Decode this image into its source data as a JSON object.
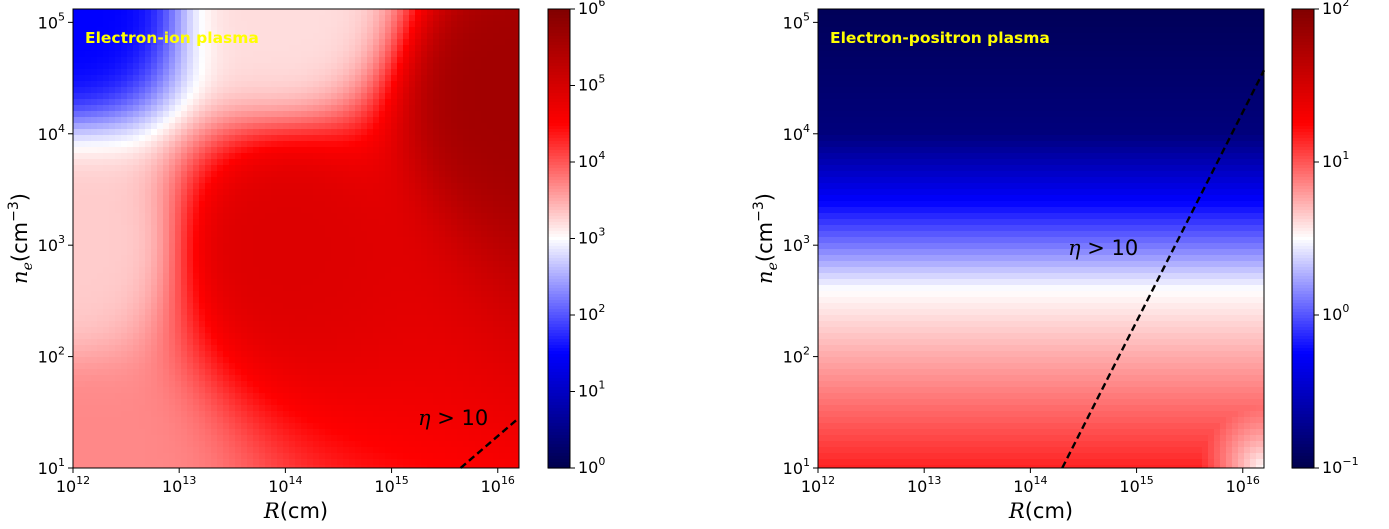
{
  "chart_data": [
    {
      "type": "heatmap",
      "panel": "left",
      "annotation": "Electron-ion plasma",
      "annotation_color": "#ffff00",
      "xlabel": {
        "var": "R",
        "unit": "(cm)"
      },
      "ylabel": {
        "var": "n",
        "sub": "e",
        "unit": "(cm",
        "sup": "−3",
        "close": ")"
      },
      "xscale": "log",
      "yscale": "log",
      "xlim_exp": [
        12,
        16.2
      ],
      "ylim_exp": [
        1,
        5.12
      ],
      "x_ticks": [
        {
          "base": "10",
          "exp": "12"
        },
        {
          "base": "10",
          "exp": "13"
        },
        {
          "base": "10",
          "exp": "14"
        },
        {
          "base": "10",
          "exp": "15"
        },
        {
          "base": "10",
          "exp": "16"
        }
      ],
      "y_ticks": [
        {
          "base": "10",
          "exp": "1"
        },
        {
          "base": "10",
          "exp": "2"
        },
        {
          "base": "10",
          "exp": "3"
        },
        {
          "base": "10",
          "exp": "4"
        },
        {
          "base": "10",
          "exp": "5"
        }
      ],
      "colorbar": {
        "cmap": "seismic",
        "scale": "log",
        "range_exp": [
          0,
          6
        ],
        "ticks": [
          {
            "base": "10",
            "exp": "0"
          },
          {
            "base": "10",
            "exp": "1"
          },
          {
            "base": "10",
            "exp": "2"
          },
          {
            "base": "10",
            "exp": "3"
          },
          {
            "base": "10",
            "exp": "4"
          },
          {
            "base": "10",
            "exp": "5"
          },
          {
            "base": "10",
            "exp": "6"
          }
        ]
      },
      "field": {
        "description_type": "log10 value as function of log10 R (x) and log10 n_e (y)",
        "anchors": [
          {
            "x": 12.0,
            "y": 5.12,
            "z": 1.5
          },
          {
            "x": 12.0,
            "y": 3.0,
            "z": 3.3
          },
          {
            "x": 14.0,
            "y": 5.12,
            "z": 3.2
          },
          {
            "x": 16.2,
            "y": 4.4,
            "z": 5.6
          },
          {
            "x": 14.0,
            "y": 3.0,
            "z": 4.9
          },
          {
            "x": 12.0,
            "y": 1.0,
            "z": 3.7
          }
        ]
      },
      "boundary": {
        "style": "dashed",
        "color": "#000000",
        "label": {
          "symbol": "η",
          "relation": " > 10"
        },
        "points": [
          [
            15.65,
            1.0
          ],
          [
            16.2,
            1.45
          ]
        ]
      }
    },
    {
      "type": "heatmap",
      "panel": "right",
      "annotation": "Electron-positron plasma",
      "annotation_color": "#ffff00",
      "xlabel": {
        "var": "R",
        "unit": "(cm)"
      },
      "ylabel": {
        "var": "n",
        "sub": "e",
        "unit": "(cm",
        "sup": "−3",
        "close": ")"
      },
      "xscale": "log",
      "yscale": "log",
      "xlim_exp": [
        12,
        16.2
      ],
      "ylim_exp": [
        1,
        5.12
      ],
      "x_ticks": [
        {
          "base": "10",
          "exp": "12"
        },
        {
          "base": "10",
          "exp": "13"
        },
        {
          "base": "10",
          "exp": "14"
        },
        {
          "base": "10",
          "exp": "15"
        },
        {
          "base": "10",
          "exp": "16"
        }
      ],
      "y_ticks": [
        {
          "base": "10",
          "exp": "1"
        },
        {
          "base": "10",
          "exp": "2"
        },
        {
          "base": "10",
          "exp": "3"
        },
        {
          "base": "10",
          "exp": "4"
        },
        {
          "base": "10",
          "exp": "5"
        }
      ],
      "colorbar": {
        "cmap": "seismic",
        "scale": "log",
        "range_exp": [
          -1,
          2
        ],
        "ticks": [
          {
            "base": "10",
            "exp": "−1"
          },
          {
            "base": "10",
            "exp": "0"
          },
          {
            "base": "10",
            "exp": "1"
          },
          {
            "base": "10",
            "exp": "2"
          }
        ]
      },
      "field": {
        "description_type": "log10 value depends mostly on log10 n_e",
        "profile_y": [
          [
            1.0,
            1.15
          ],
          [
            2.0,
            0.75
          ],
          [
            2.6,
            0.5
          ],
          [
            3.0,
            0.1
          ],
          [
            4.0,
            -0.8
          ],
          [
            5.12,
            -0.95
          ]
        ],
        "corner_fade": {
          "x": 16.2,
          "y": 1.0,
          "z": 0.5
        }
      },
      "boundary": {
        "style": "dashed",
        "color": "#000000",
        "label": {
          "symbol": "η",
          "relation": " > 10"
        },
        "points": [
          [
            14.3,
            1.0
          ],
          [
            16.2,
            4.57
          ]
        ]
      }
    }
  ]
}
